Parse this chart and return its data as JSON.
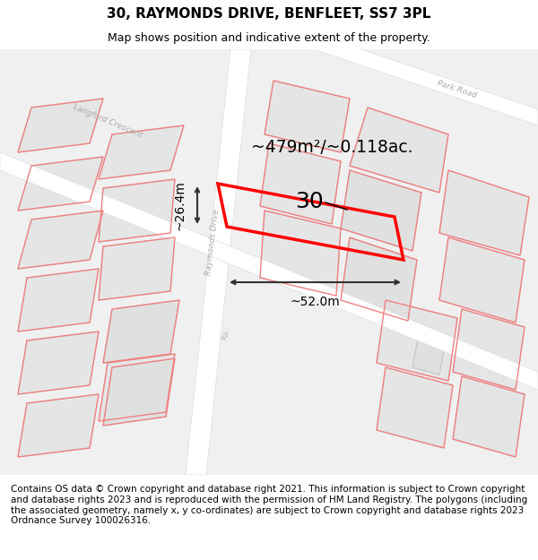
{
  "title": "30, RAYMONDS DRIVE, BENFLEET, SS7 3PL",
  "subtitle": "Map shows position and indicative extent of the property.",
  "footer": "Contains OS data © Crown copyright and database right 2021. This information is subject to Crown copyright and database rights 2023 and is reproduced with the permission of HM Land Registry. The polygons (including the associated geometry, namely x, y co-ordinates) are subject to Crown copyright and database rights 2023 Ordnance Survey 100026316.",
  "area_text": "~479m²/~0.118ac.",
  "width_text": "~52.0m",
  "height_text": "~26.4m",
  "number_text": "30",
  "road_label": "Raymonds Drive",
  "road_label2": "Raymonds Drive",
  "langford_label": "Langford Crescent",
  "park_road_label": "Park Road",
  "map_bg": "#f5f5f5",
  "building_fill": "#e0e0e0",
  "building_edge": "#c0c0c0",
  "road_color": "#ffffff",
  "highlight_color": "#ff0000",
  "dim_color": "#333333",
  "title_fontsize": 11,
  "subtitle_fontsize": 9,
  "footer_fontsize": 7.5
}
